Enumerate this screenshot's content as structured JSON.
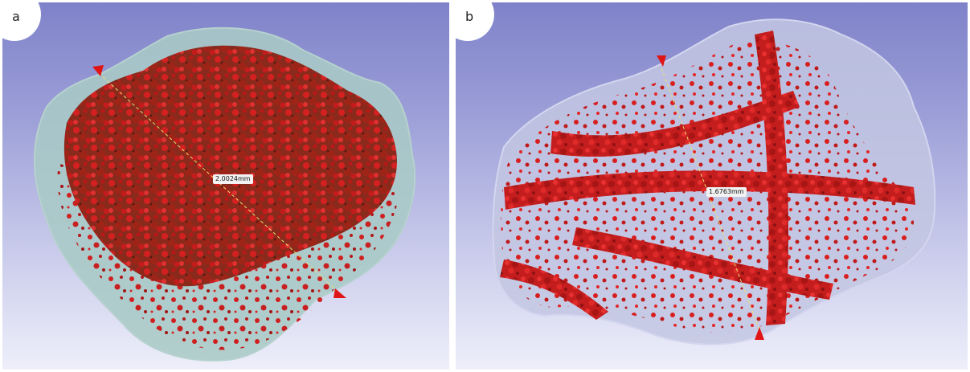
{
  "panels": [
    {
      "label": "a",
      "measurement": "2.0024mm"
    },
    {
      "label": "b",
      "measurement": "1.6763mm"
    }
  ],
  "colors": {
    "background_top": "#7f82c9",
    "background_bottom": "#eeeffa",
    "surface_shell": "#a9c9c6",
    "texture_red": "#c81e1e",
    "texture_dark": "#7a1f17",
    "marker": "#e01515",
    "measure_line": "#e8e070"
  }
}
